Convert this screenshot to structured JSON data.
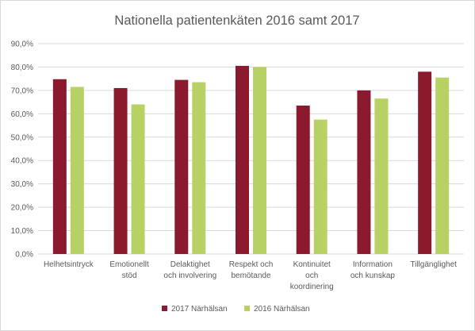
{
  "chart_data": {
    "type": "bar",
    "title": "Nationella patientenkäten 2016 samt 2017",
    "categories": [
      [
        "Helhetsintryck"
      ],
      [
        "Emotionellt",
        "stöd"
      ],
      [
        "Delaktighet",
        "och involvering"
      ],
      [
        "Respekt och",
        "bemötande"
      ],
      [
        "Kontinuitet",
        "och",
        "koordinering"
      ],
      [
        "Information",
        "och kunskap"
      ],
      [
        "Tillgänglighet"
      ]
    ],
    "series": [
      {
        "name": "2017 Närhälsan",
        "color": "#8b1a2f",
        "values": [
          74.8,
          71.0,
          74.5,
          80.5,
          63.5,
          70.0,
          78.0
        ]
      },
      {
        "name": "2016 Närhälsan",
        "color": "#b8d165",
        "values": [
          71.5,
          64.0,
          73.5,
          80.0,
          57.5,
          66.5,
          75.5
        ]
      }
    ],
    "ylim": [
      0,
      90
    ],
    "yticks": [
      "0,0%",
      "10,0%",
      "20,0%",
      "30,0%",
      "40,0%",
      "50,0%",
      "60,0%",
      "70,0%",
      "80,0%",
      "90,0%"
    ],
    "grid": true,
    "legend": "bottom",
    "gridColor": "#d9d9d9"
  }
}
